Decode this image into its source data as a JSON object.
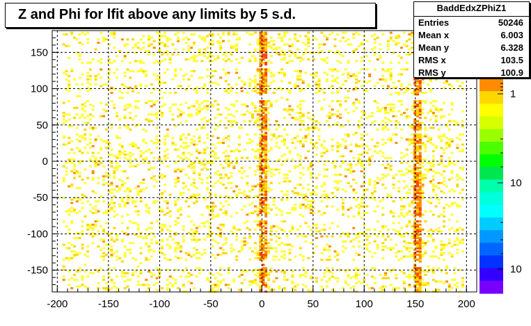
{
  "chart_data": {
    "type": "heatmap",
    "title": "Z and Phi for lfit above any limits by 5 s.d.",
    "xlabel": "",
    "ylabel": "",
    "xlim": [
      -205,
      210
    ],
    "ylim": [
      -180,
      180
    ],
    "x_ticks": [
      -200,
      -150,
      -100,
      -50,
      0,
      50,
      100,
      150,
      200
    ],
    "y_ticks": [
      -150,
      -100,
      -50,
      0,
      50,
      100,
      150
    ],
    "grid": true,
    "occupied_x_range": [
      -195,
      195
    ],
    "dense_x_strips": [
      0,
      150
    ],
    "empty_phi_bands": [
      [
        -145,
        -135
      ],
      [
        -80,
        -75
      ],
      [
        40,
        45
      ],
      [
        85,
        95
      ],
      [
        130,
        135
      ]
    ],
    "colorbar": {
      "scale": "log",
      "colors": [
        "#ff8c00",
        "#ffd700",
        "#ffff00",
        "#d6ff00",
        "#9bff00",
        "#4cff00",
        "#00ff00",
        "#00e650",
        "#00ffaa",
        "#00ffdd",
        "#00ffff",
        "#00ccff",
        "#0099ff",
        "#0066ff",
        "#0033ff",
        "#3300ff",
        "#7700ff"
      ],
      "tick_labels": [
        "1",
        "10",
        "10"
      ]
    },
    "stats": {
      "name": "BaddEdxZPhiZ1",
      "entries": {
        "label": "Entries",
        "value": "50246"
      },
      "mean_x": {
        "label": "Mean x",
        "value": "6.003"
      },
      "mean_y": {
        "label": "Mean y",
        "value": "6.328"
      },
      "rms_x": {
        "label": "RMS x",
        "value": "103.5"
      },
      "rms_y": {
        "label": "RMS y",
        "value": "100.9"
      }
    }
  }
}
